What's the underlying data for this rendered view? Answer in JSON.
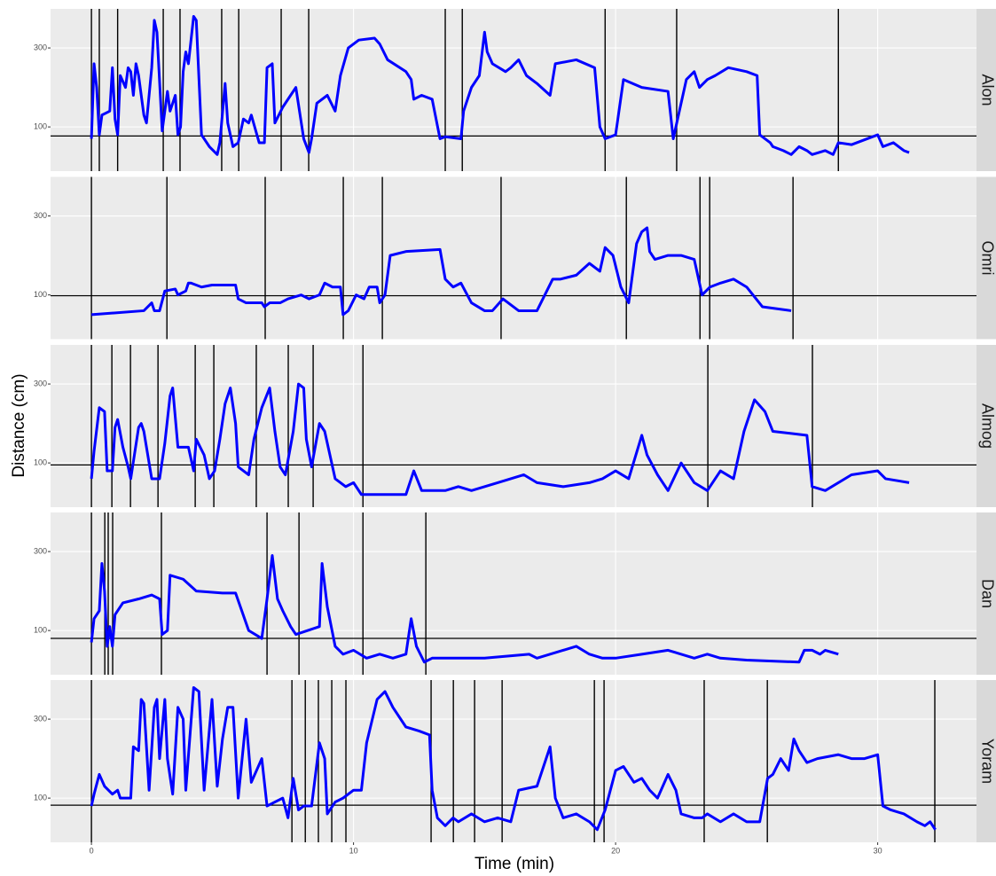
{
  "chart_data": {
    "type": "line",
    "x_label": "Time (min)",
    "y_label": "Distance (cm)",
    "xlim": [
      -1.56,
      33.77
    ],
    "ylim": [
      -12,
      399
    ],
    "xticks": [
      0,
      10,
      20,
      30
    ],
    "yticks": [
      100,
      300
    ],
    "grid": true,
    "series": [
      {
        "name": "Alon",
        "color": "#0000ff",
        "threshold": 77,
        "events": [
          0,
          0.3,
          1.0,
          2.74,
          3.38,
          4.97,
          5.62,
          7.24,
          8.29,
          13.5,
          14.15,
          19.6,
          22.33,
          28.5
        ],
        "x": [
          0,
          0.1,
          0.2,
          0.3,
          0.4,
          0.7,
          0.8,
          0.9,
          1.0,
          1.1,
          1.3,
          1.4,
          1.5,
          1.6,
          1.7,
          1.8,
          2.0,
          2.1,
          2.3,
          2.4,
          2.5,
          2.7,
          2.9,
          3.0,
          3.2,
          3.3,
          3.4,
          3.5,
          3.6,
          3.7,
          3.9,
          4.0,
          4.2,
          4.5,
          4.8,
          4.9,
          5.1,
          5.2,
          5.4,
          5.6,
          5.8,
          6.0,
          6.1,
          6.4,
          6.6,
          6.7,
          6.9,
          7.0,
          7.3,
          7.6,
          7.8,
          8.1,
          8.3,
          8.4,
          8.6,
          9.0,
          9.3,
          9.5,
          9.8,
          10.2,
          10.8,
          11.0,
          11.3,
          12.0,
          12.2,
          12.3,
          12.6,
          13.0,
          13.3,
          13.5,
          14.1,
          14.2,
          14.5,
          14.8,
          15.0,
          15.1,
          15.3,
          15.8,
          16.0,
          16.3,
          16.6,
          17.0,
          17.5,
          17.7,
          18.5,
          19.2,
          19.4,
          19.6,
          20.0,
          20.3,
          21.0,
          22.0,
          22.2,
          22.3,
          22.7,
          23.0,
          23.2,
          23.5,
          23.8,
          24.3,
          25.0,
          25.4,
          25.5,
          25.9,
          26.0,
          26.4,
          26.7,
          27.0,
          27.3,
          27.5,
          28.0,
          28.3,
          28.5,
          29.0,
          30.0,
          30.2,
          30.6,
          31.0,
          31.2
        ],
        "values": [
          70,
          260,
          200,
          80,
          130,
          140,
          250,
          120,
          80,
          230,
          200,
          250,
          240,
          180,
          260,
          230,
          130,
          110,
          250,
          370,
          340,
          90,
          190,
          140,
          180,
          80,
          100,
          240,
          290,
          260,
          380,
          370,
          80,
          50,
          30,
          60,
          210,
          110,
          50,
          60,
          120,
          110,
          130,
          60,
          60,
          250,
          260,
          110,
          150,
          180,
          200,
          70,
          35,
          70,
          160,
          180,
          140,
          230,
          300,
          320,
          325,
          310,
          270,
          240,
          220,
          170,
          180,
          170,
          70,
          75,
          70,
          140,
          200,
          230,
          340,
          290,
          260,
          240,
          250,
          270,
          230,
          210,
          180,
          260,
          270,
          250,
          100,
          70,
          80,
          220,
          200,
          190,
          70,
          100,
          220,
          240,
          200,
          220,
          230,
          250,
          240,
          230,
          80,
          60,
          50,
          40,
          30,
          50,
          40,
          30,
          40,
          30,
          60,
          55,
          80,
          50,
          60,
          40,
          35
        ]
      },
      {
        "name": "Omri",
        "color": "#0000ff",
        "threshold": 98,
        "events": [
          0,
          2.88,
          6.63,
          9.61,
          11.1,
          15.63,
          20.41,
          23.22,
          23.59,
          26.77
        ],
        "x": [
          0,
          2.0,
          2.3,
          2.4,
          2.6,
          2.8,
          3.2,
          3.3,
          3.6,
          3.7,
          3.8,
          4.2,
          4.6,
          5.1,
          5.5,
          5.6,
          5.9,
          6.5,
          6.6,
          6.8,
          7.2,
          7.5,
          8.0,
          8.3,
          8.7,
          8.9,
          9.2,
          9.5,
          9.6,
          9.8,
          10.1,
          10.4,
          10.6,
          10.9,
          11.0,
          11.2,
          11.4,
          12.0,
          13.3,
          13.5,
          13.8,
          14.1,
          14.5,
          15.0,
          15.3,
          15.7,
          16.3,
          17.0,
          17.6,
          17.9,
          18.5,
          19.0,
          19.4,
          19.6,
          19.9,
          20.2,
          20.5,
          20.8,
          21.0,
          21.2,
          21.3,
          21.5,
          22.0,
          22.5,
          23.0,
          23.3,
          23.6,
          24.0,
          24.5,
          25.0,
          25.6,
          26.7
        ],
        "values": [
          50,
          60,
          80,
          60,
          60,
          110,
          115,
          100,
          110,
          130,
          130,
          120,
          125,
          125,
          125,
          90,
          80,
          80,
          70,
          80,
          80,
          90,
          100,
          90,
          100,
          130,
          120,
          120,
          50,
          60,
          100,
          90,
          120,
          120,
          80,
          100,
          200,
          210,
          215,
          140,
          120,
          130,
          80,
          60,
          60,
          90,
          60,
          60,
          140,
          140,
          150,
          180,
          160,
          220,
          200,
          120,
          80,
          230,
          260,
          270,
          210,
          190,
          200,
          200,
          190,
          100,
          120,
          130,
          140,
          120,
          70,
          60
        ]
      },
      {
        "name": "Almog",
        "color": "#0000ff",
        "threshold": 95,
        "events": [
          0,
          0.78,
          1.49,
          2.54,
          3.96,
          4.67,
          6.29,
          7.51,
          8.46,
          10.36,
          23.52,
          27.51
        ],
        "x": [
          0,
          0.1,
          0.3,
          0.5,
          0.6,
          0.8,
          0.9,
          1.0,
          1.2,
          1.4,
          1.5,
          1.8,
          1.9,
          2.0,
          2.3,
          2.6,
          2.8,
          3.0,
          3.1,
          3.3,
          3.7,
          3.9,
          4.0,
          4.3,
          4.5,
          4.7,
          4.9,
          5.1,
          5.3,
          5.5,
          5.6,
          5.8,
          6.0,
          6.2,
          6.5,
          6.8,
          7.0,
          7.2,
          7.4,
          7.7,
          7.9,
          8.1,
          8.2,
          8.4,
          8.7,
          8.9,
          9.3,
          9.7,
          10.0,
          10.3,
          11.0,
          12.0,
          12.3,
          12.6,
          13.5,
          14.0,
          14.5,
          15.5,
          16.5,
          17.0,
          18.0,
          19.0,
          19.5,
          20.0,
          20.5,
          21.0,
          21.2,
          21.6,
          22.0,
          22.5,
          23.0,
          23.5,
          24.0,
          24.5,
          24.9,
          25.3,
          25.7,
          26.0,
          27.3,
          27.5,
          28.0,
          29.0,
          30.0,
          30.3,
          31.2
        ],
        "values": [
          60,
          130,
          240,
          230,
          80,
          80,
          190,
          210,
          140,
          90,
          60,
          190,
          200,
          180,
          60,
          60,
          150,
          270,
          290,
          140,
          140,
          80,
          160,
          120,
          60,
          80,
          160,
          250,
          290,
          200,
          90,
          80,
          70,
          160,
          240,
          290,
          180,
          90,
          70,
          180,
          300,
          290,
          160,
          90,
          200,
          180,
          60,
          40,
          50,
          20,
          20,
          20,
          80,
          30,
          30,
          40,
          30,
          50,
          70,
          50,
          40,
          50,
          60,
          80,
          60,
          170,
          120,
          70,
          30,
          100,
          50,
          30,
          80,
          60,
          180,
          260,
          230,
          180,
          170,
          40,
          30,
          70,
          80,
          60,
          50
        ]
      },
      {
        "name": "Dan",
        "color": "#0000ff",
        "threshold": 80,
        "events": [
          0,
          0.51,
          0.64,
          0.81,
          2.67,
          6.7,
          7.92,
          10.36,
          12.76
        ],
        "x": [
          0,
          0.1,
          0.3,
          0.4,
          0.5,
          0.6,
          0.7,
          0.8,
          0.9,
          1.2,
          1.8,
          2.3,
          2.6,
          2.7,
          2.9,
          3.0,
          3.5,
          4.0,
          5.0,
          5.5,
          6.0,
          6.5,
          6.7,
          6.9,
          7.1,
          7.3,
          7.6,
          7.8,
          8.7,
          8.8,
          9.0,
          9.3,
          9.6,
          10.0,
          10.5,
          11.0,
          11.5,
          12.0,
          12.2,
          12.4,
          12.7,
          13.0,
          15.0,
          16.7,
          17.0,
          18.5,
          19.0,
          19.5,
          20.0,
          21.0,
          22.0,
          23.0,
          23.5,
          24.0,
          25.0,
          27.0,
          27.2,
          27.5,
          27.8,
          28.0,
          28.5
        ],
        "values": [
          70,
          130,
          150,
          270,
          200,
          60,
          110,
          60,
          140,
          170,
          180,
          190,
          180,
          90,
          100,
          240,
          230,
          200,
          195,
          195,
          100,
          80,
          180,
          290,
          180,
          150,
          110,
          90,
          110,
          270,
          160,
          60,
          40,
          50,
          30,
          40,
          30,
          40,
          130,
          60,
          20,
          30,
          30,
          40,
          30,
          60,
          40,
          30,
          30,
          40,
          50,
          30,
          40,
          30,
          25,
          20,
          50,
          50,
          40,
          50,
          40
        ]
      },
      {
        "name": "Yoram",
        "color": "#0000ff",
        "threshold": 82,
        "events": [
          0,
          7.65,
          8.16,
          8.66,
          9.17,
          9.71,
          12.96,
          13.81,
          14.62,
          15.67,
          19.19,
          19.56,
          23.38,
          25.79,
          32.18
        ],
        "x": [
          0,
          0.1,
          0.3,
          0.5,
          0.8,
          1.0,
          1.1,
          1.5,
          1.6,
          1.8,
          1.9,
          2.0,
          2.2,
          2.4,
          2.5,
          2.6,
          2.8,
          2.9,
          3.1,
          3.3,
          3.5,
          3.6,
          3.9,
          4.1,
          4.3,
          4.6,
          4.8,
          5.0,
          5.2,
          5.4,
          5.6,
          5.9,
          6.1,
          6.5,
          6.7,
          7.0,
          7.3,
          7.5,
          7.7,
          7.9,
          8.1,
          8.4,
          8.7,
          8.9,
          9.0,
          9.3,
          9.6,
          10.0,
          10.3,
          10.5,
          10.9,
          11.2,
          11.5,
          12.0,
          12.5,
          12.9,
          13.0,
          13.2,
          13.5,
          13.8,
          14.0,
          14.5,
          15.0,
          15.5,
          16.0,
          16.3,
          17.0,
          17.5,
          17.7,
          18.0,
          18.5,
          19.0,
          19.3,
          19.6,
          20.0,
          20.3,
          20.7,
          21.0,
          21.3,
          21.6,
          22.0,
          22.3,
          22.5,
          23.0,
          23.3,
          23.5,
          24.0,
          24.5,
          25.0,
          25.5,
          25.8,
          26.0,
          26.3,
          26.6,
          26.8,
          27.0,
          27.3,
          27.7,
          28.5,
          29.0,
          29.5,
          30.0,
          30.2,
          30.5,
          31.0,
          31.5,
          31.8,
          32.0,
          32.2
        ],
        "values": [
          80,
          110,
          160,
          130,
          110,
          120,
          100,
          100,
          230,
          220,
          350,
          340,
          120,
          330,
          350,
          200,
          350,
          200,
          110,
          330,
          300,
          120,
          380,
          370,
          120,
          350,
          130,
          250,
          330,
          330,
          100,
          300,
          140,
          200,
          80,
          90,
          100,
          50,
          150,
          70,
          80,
          80,
          240,
          200,
          60,
          90,
          100,
          120,
          120,
          240,
          350,
          370,
          330,
          280,
          270,
          260,
          120,
          50,
          30,
          50,
          40,
          60,
          40,
          50,
          40,
          120,
          130,
          230,
          100,
          50,
          60,
          40,
          20,
          70,
          170,
          180,
          140,
          150,
          120,
          100,
          160,
          120,
          60,
          50,
          50,
          60,
          40,
          60,
          40,
          40,
          150,
          160,
          200,
          170,
          250,
          220,
          190,
          200,
          210,
          200,
          200,
          210,
          80,
          70,
          60,
          40,
          30,
          40,
          20
        ]
      }
    ]
  }
}
